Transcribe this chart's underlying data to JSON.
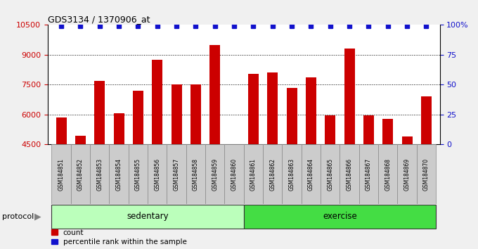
{
  "title": "GDS3134 / 1370906_at",
  "categories": [
    "GSM184851",
    "GSM184852",
    "GSM184853",
    "GSM184854",
    "GSM184855",
    "GSM184856",
    "GSM184857",
    "GSM184858",
    "GSM184859",
    "GSM184860",
    "GSM184861",
    "GSM184862",
    "GSM184863",
    "GSM184864",
    "GSM184865",
    "GSM184866",
    "GSM184867",
    "GSM184868",
    "GSM184869",
    "GSM184870"
  ],
  "bar_values": [
    5850,
    4950,
    7700,
    6050,
    7200,
    8750,
    7500,
    7500,
    9500,
    4510,
    8050,
    8100,
    7350,
    7850,
    5950,
    9300,
    5950,
    5800,
    4900,
    6900
  ],
  "bar_color": "#cc0000",
  "percentile_color": "#1111cc",
  "ylim_left": [
    4500,
    10500
  ],
  "ylim_right": [
    0,
    100
  ],
  "yticks_left": [
    4500,
    6000,
    7500,
    9000,
    10500
  ],
  "ytick_color_left": "#cc0000",
  "yticks_right": [
    0,
    25,
    50,
    75,
    100
  ],
  "ytick_labels_right": [
    "0",
    "25",
    "50",
    "75",
    "100%"
  ],
  "ytick_color_right": "#1111cc",
  "grid_values": [
    6000,
    7500,
    9000
  ],
  "sedentary_indices": [
    0,
    9
  ],
  "exercise_indices": [
    10,
    19
  ],
  "sedentary_color": "#bbffbb",
  "exercise_color": "#44dd44",
  "protocol_label": "protocol",
  "sedentary_label": "sedentary",
  "exercise_label": "exercise",
  "legend_count_label": "count",
  "legend_percentile_label": "percentile rank within the sample",
  "bar_width": 0.55,
  "xlabel_bg_color": "#cccccc",
  "plot_bg_color": "#ffffff",
  "fig_bg_color": "#f0f0f0",
  "percentile_marker": "s",
  "percentile_markersize": 4
}
